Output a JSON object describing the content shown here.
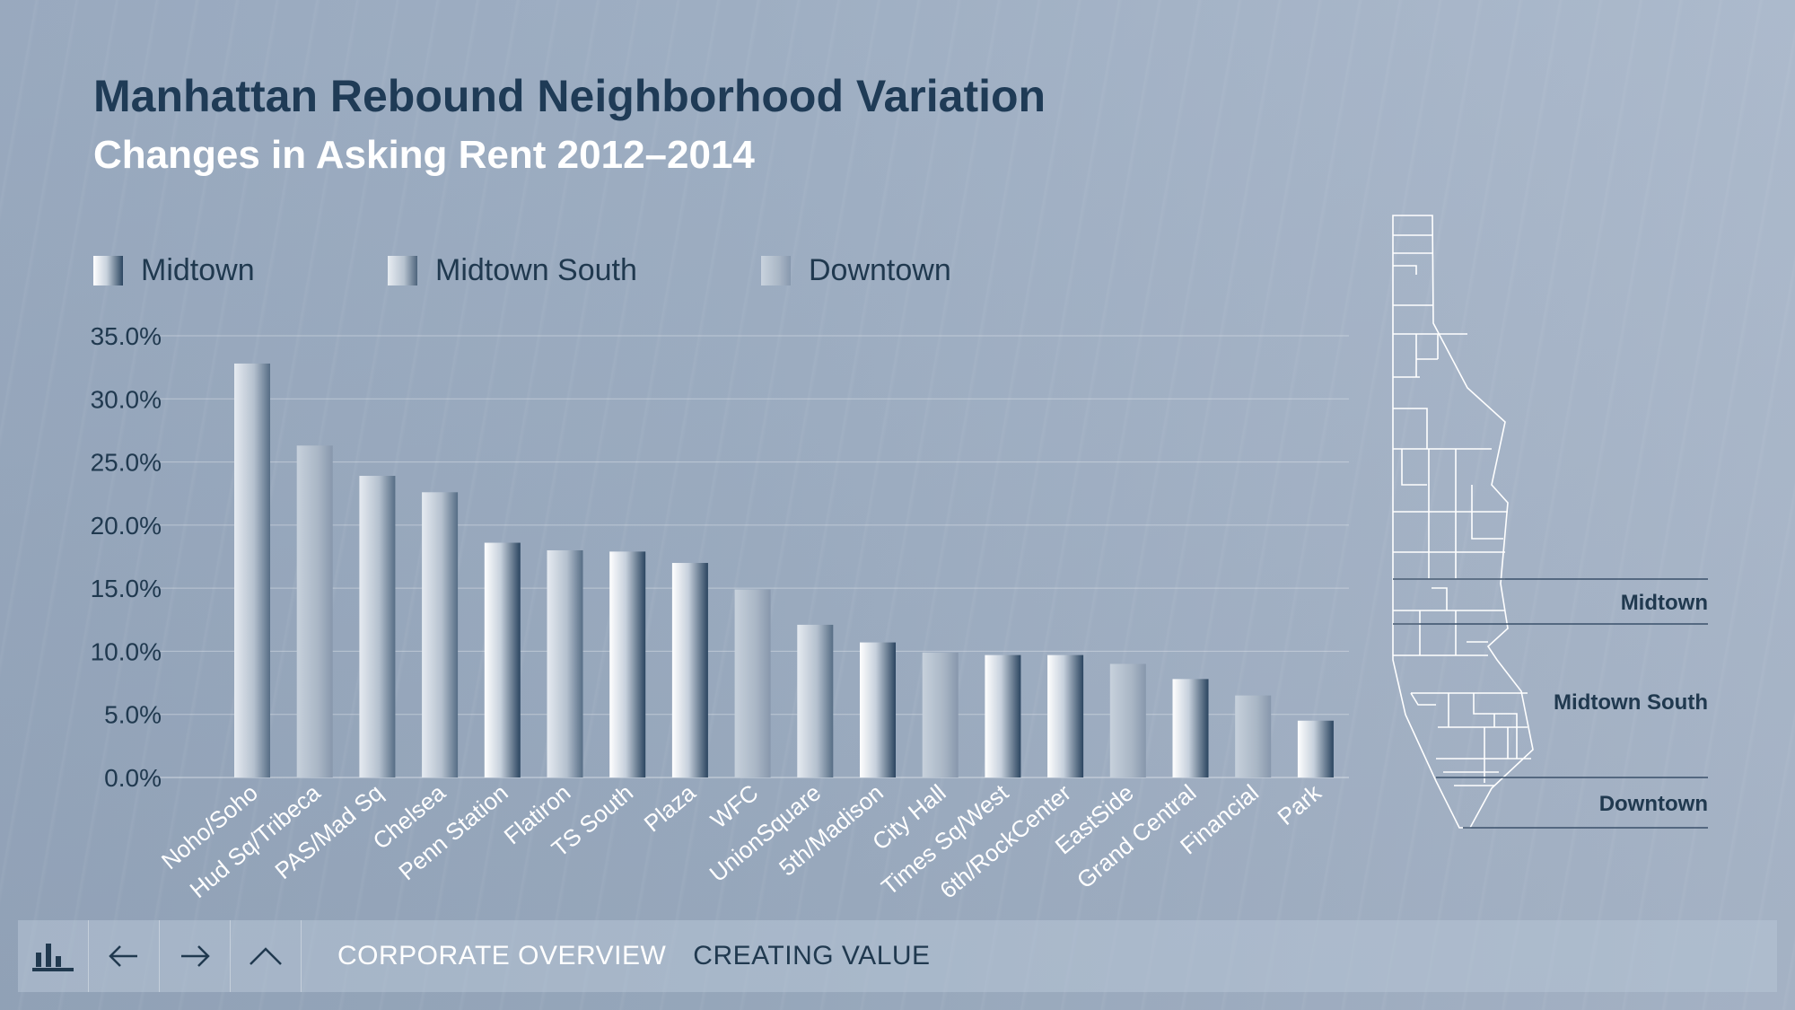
{
  "header": {
    "title": "Manhattan Rebound Neighborhood Variation",
    "subtitle": "Changes in Asking Rent 2012–2014"
  },
  "chart_data": {
    "type": "bar",
    "title": "Manhattan Rebound Neighborhood Variation",
    "subtitle": "Changes in Asking Rent 2012–2014",
    "xlabel": "",
    "ylabel": "",
    "ylim": [
      0,
      35
    ],
    "yticks": [
      "0.0%",
      "5.0%",
      "10.0%",
      "15.0%",
      "20.0%",
      "25.0%",
      "30.0%",
      "35.0%"
    ],
    "grid": true,
    "legend_position": "top-left",
    "legend": [
      {
        "name": "Midtown",
        "color": "#2b4560"
      },
      {
        "name": "Midtown South",
        "color": "#4d647c"
      },
      {
        "name": "Downtown",
        "color": "#8798ae"
      }
    ],
    "categories": [
      "Noho/Soho",
      "Hud Sq/Tribeca",
      "PAS/Mad Sq",
      "Chelsea",
      "Penn Station",
      "Flatiron",
      "TS South",
      "Plaza",
      "WFC",
      "UnionSquare",
      "5th/Madison",
      "City Hall",
      "Times Sq/West",
      "6th/RockCenter",
      "EastSide",
      "Grand Central",
      "Financial",
      "Park"
    ],
    "values": [
      32.8,
      26.3,
      23.9,
      22.6,
      18.6,
      18.0,
      17.9,
      17.0,
      14.9,
      12.1,
      10.7,
      9.9,
      9.7,
      9.7,
      9.0,
      7.8,
      6.5,
      4.5
    ],
    "groups": [
      "Midtown South",
      "Downtown",
      "Midtown South",
      "Midtown South",
      "Midtown",
      "Midtown South",
      "Midtown",
      "Midtown",
      "Downtown",
      "Midtown South",
      "Midtown",
      "Downtown",
      "Midtown",
      "Midtown",
      "Downtown",
      "Midtown",
      "Downtown",
      "Midtown"
    ]
  },
  "map": {
    "labels": [
      "Midtown",
      "Midtown South",
      "Downtown"
    ]
  },
  "footer": {
    "links": [
      "CORPORATE OVERVIEW",
      "CREATING VALUE"
    ],
    "icons": [
      "bar-chart-icon",
      "arrow-left-icon",
      "arrow-right-icon",
      "chevron-up-icon"
    ]
  }
}
